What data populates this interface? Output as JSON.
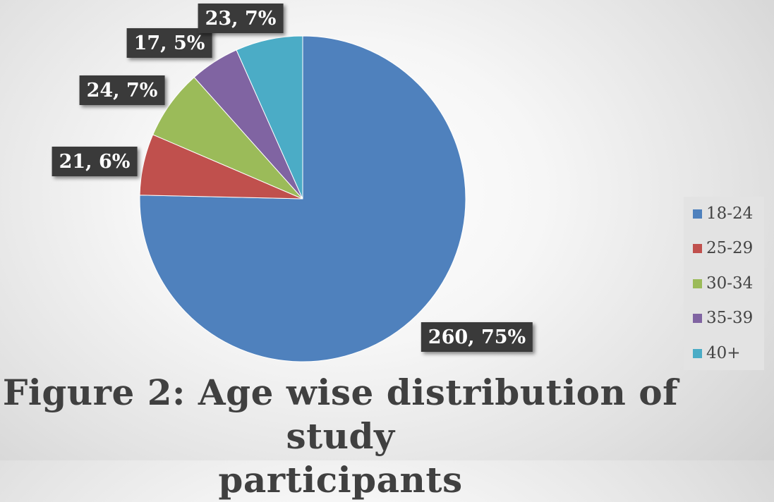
{
  "chart_data": {
    "type": "pie",
    "title": "Figure 2: Age wise distribution of study participants",
    "categories": [
      "18-24",
      "25-29",
      "30-34",
      "35-39",
      "40+"
    ],
    "values": [
      260,
      21,
      24,
      17,
      23
    ],
    "percent_labels": [
      "75%",
      "6%",
      "7%",
      "5%",
      "7%"
    ],
    "data_labels": [
      "260, 75%",
      "21, 6%",
      "24, 7%",
      "17, 5%",
      "23, 7%"
    ],
    "colors": [
      "#4f81bd",
      "#c0504d",
      "#9bbb59",
      "#8064a2",
      "#4bacc6"
    ],
    "legend_position": "right"
  },
  "caption": {
    "line1": "Figure 2: Age wise distribution of study",
    "line2": "participants"
  }
}
